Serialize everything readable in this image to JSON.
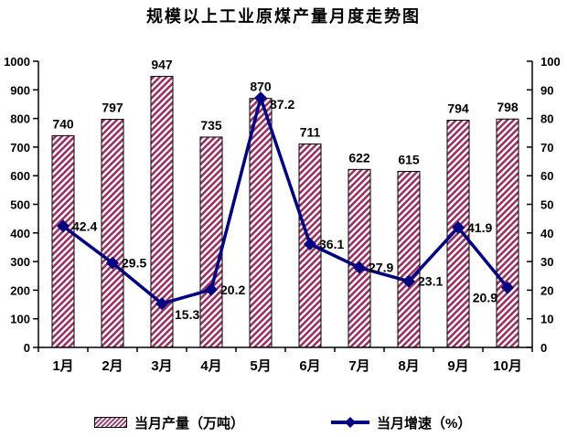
{
  "title": "规模以上工业原煤产量月度走势图",
  "chart_data": {
    "type": "bar",
    "subtype": "combo-bar-line",
    "title": "规模以上工业原煤产量月度走势图",
    "categories": [
      "1月",
      "2月",
      "3月",
      "4月",
      "5月",
      "6月",
      "7月",
      "8月",
      "9月",
      "10月"
    ],
    "series": [
      {
        "name": "当月产量（万吨）",
        "type": "bar",
        "axis": "left",
        "color": "#993366",
        "fill_style": "diagonal-hatch",
        "values": [
          740,
          797,
          947,
          735,
          870,
          711,
          622,
          615,
          794,
          798
        ]
      },
      {
        "name": "当月增速（%）",
        "type": "line",
        "axis": "right",
        "color": "#000080",
        "marker": "diamond",
        "values": [
          42.4,
          29.5,
          15.3,
          20.2,
          87.2,
          36.1,
          27.9,
          23.1,
          41.9,
          20.9
        ]
      }
    ],
    "left_axis": {
      "min": 0,
      "max": 1000,
      "step": 100,
      "ticks": [
        0,
        100,
        200,
        300,
        400,
        500,
        600,
        700,
        800,
        900,
        1000
      ]
    },
    "right_axis": {
      "min": 0,
      "max": 100,
      "step": 10,
      "ticks": [
        0,
        10,
        20,
        30,
        40,
        50,
        60,
        70,
        80,
        90,
        100
      ]
    },
    "grid": false,
    "legend": {
      "position": "bottom"
    },
    "line_label_placement": [
      "right",
      "right",
      "below-right",
      "right",
      "right-low",
      "right",
      "right",
      "right",
      "right",
      "left-below"
    ],
    "axis_color": "#000000",
    "text_color": "#000000",
    "background": "#ffffff"
  }
}
